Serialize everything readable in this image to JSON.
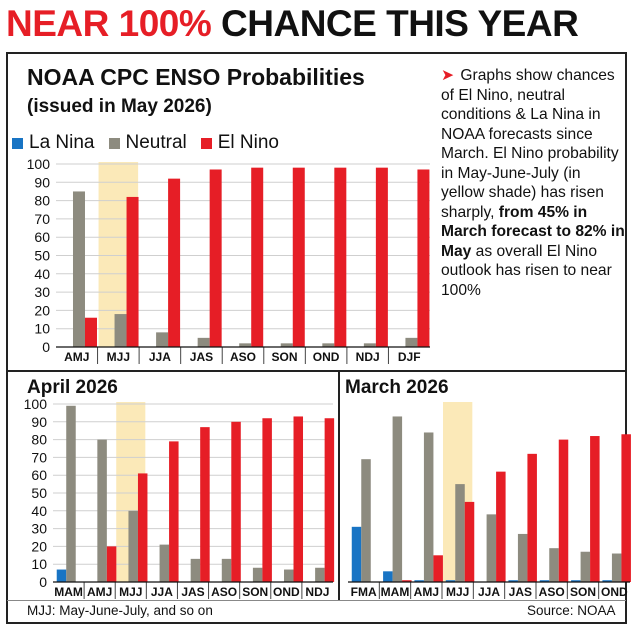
{
  "headline": {
    "part1": "NEAR 100%",
    "part2": "CHANCE THIS YEAR"
  },
  "title": "NOAA CPC ENSO Probabilities",
  "subtitle": "(issued in May 2026)",
  "legend": [
    {
      "label": "La Nina",
      "color": "#1874c4"
    },
    {
      "label": "Neutral",
      "color": "#8d8b7f"
    },
    {
      "label": "El Nino",
      "color": "#e61e26"
    }
  ],
  "note": {
    "arrow": "➤",
    "text_plain": "Graphs show chances of El Nino, neutral conditions & La Nina in NOAA forecasts since March. El Nino probability in May-June-July (in yellow shade) has risen sharply, ",
    "text_bold": "from 45% in March forecast to 82% in May",
    "text_end": " as overall El Nino outlook has risen to near 100%"
  },
  "colors": {
    "la_nina": "#1874c4",
    "neutral": "#8d8b7f",
    "el_nino": "#e61e26",
    "highlight": "#fbe9b8",
    "accent": "#e61e26"
  },
  "footer": {
    "left": "MJJ: May-June-July, and so on",
    "right": "Source: NOAA"
  },
  "chart_data": [
    {
      "type": "bar",
      "title": "May 2026",
      "categories": [
        "AMJ",
        "MJJ",
        "JJA",
        "JAS",
        "ASO",
        "SON",
        "OND",
        "NDJ",
        "DJF"
      ],
      "highlight": "MJJ",
      "series": [
        {
          "name": "La Nina",
          "values": [
            0,
            0,
            0,
            0,
            0,
            0,
            0,
            0,
            0
          ]
        },
        {
          "name": "Neutral",
          "values": [
            85,
            18,
            8,
            5,
            2,
            2,
            2,
            2,
            5
          ]
        },
        {
          "name": "El Nino",
          "values": [
            16,
            82,
            92,
            97,
            98,
            98,
            98,
            98,
            97
          ]
        }
      ],
      "ylim": [
        0,
        100
      ],
      "yticks": [
        0,
        10,
        20,
        30,
        40,
        50,
        60,
        70,
        80,
        90,
        100
      ]
    },
    {
      "type": "bar",
      "title": "April 2026",
      "categories": [
        "MAM",
        "AMJ",
        "MJJ",
        "JJA",
        "JAS",
        "ASO",
        "SON",
        "OND",
        "NDJ"
      ],
      "highlight": "MJJ",
      "series": [
        {
          "name": "La Nina",
          "values": [
            7,
            0,
            0,
            0,
            0,
            0,
            0,
            0,
            0
          ]
        },
        {
          "name": "Neutral",
          "values": [
            99,
            80,
            40,
            21,
            13,
            13,
            8,
            7,
            8
          ]
        },
        {
          "name": "El Nino",
          "values": [
            0,
            20,
            61,
            79,
            87,
            90,
            92,
            93,
            92
          ]
        }
      ],
      "ylim": [
        0,
        100
      ],
      "yticks": [
        0,
        10,
        20,
        30,
        40,
        50,
        60,
        70,
        80,
        90,
        100
      ]
    },
    {
      "type": "bar",
      "title": "March 2026",
      "categories": [
        "FMA",
        "MAM",
        "AMJ",
        "MJJ",
        "JJA",
        "JAS",
        "ASO",
        "SON",
        "OND"
      ],
      "highlight": "MJJ",
      "series": [
        {
          "name": "La Nina",
          "values": [
            31,
            6,
            1,
            1,
            0,
            1,
            1,
            1,
            1
          ]
        },
        {
          "name": "Neutral",
          "values": [
            69,
            93,
            84,
            55,
            38,
            27,
            19,
            17,
            16
          ]
        },
        {
          "name": "El Nino",
          "values": [
            0,
            1,
            15,
            45,
            62,
            72,
            80,
            82,
            83
          ]
        }
      ],
      "ylim": [
        0,
        100
      ],
      "yticks": []
    }
  ]
}
